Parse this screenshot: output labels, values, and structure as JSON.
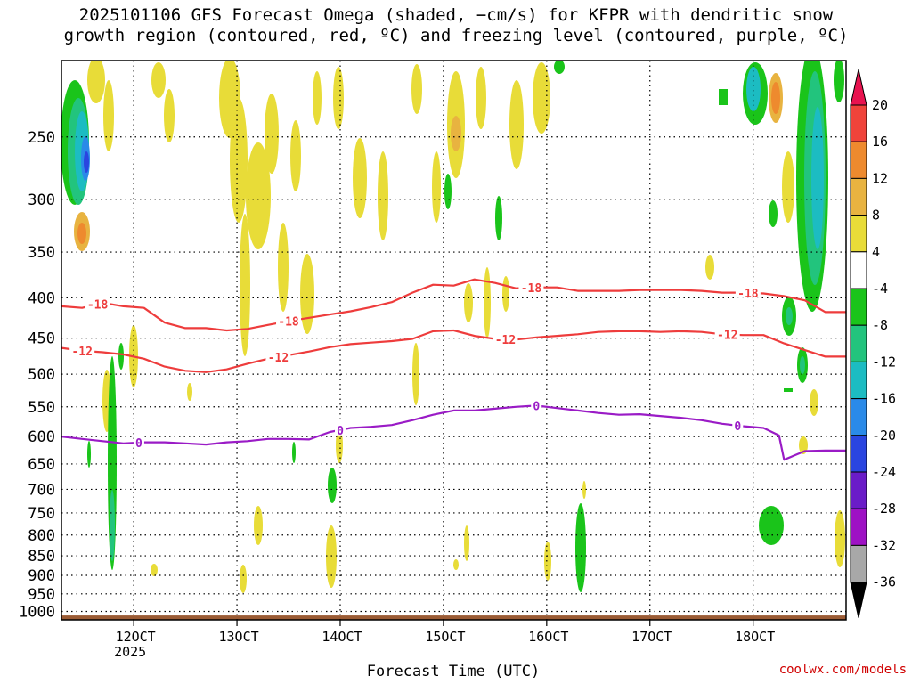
{
  "title": {
    "line1": "2025101106 GFS Forecast Omega (shaded, −cm/s) for KFPR with dendritic snow",
    "line2": "growth region (contoured, red, ºC) and freezing level (contoured, purple, ºC)"
  },
  "credit": "coolwx.com/models",
  "chart_data": {
    "type": "time-height cross section",
    "xlabel": "Forecast Time (UTC)",
    "ylabel": "",
    "x_range_hours": [
      -7,
      69
    ],
    "x_ticks": [
      {
        "hour": 0,
        "label": "12OCT",
        "sub": "2025"
      },
      {
        "hour": 10,
        "label": "13OCT",
        "sub": ""
      },
      {
        "hour": 20,
        "label": "14OCT",
        "sub": ""
      },
      {
        "hour": 30,
        "label": "15OCT",
        "sub": ""
      },
      {
        "hour": 40,
        "label": "16OCT",
        "sub": ""
      },
      {
        "hour": 50,
        "label": "17OCT",
        "sub": ""
      },
      {
        "hour": 60,
        "label": "18OCT",
        "sub": ""
      }
    ],
    "y_range_hpa": [
      1025,
      200
    ],
    "y_ticks": [
      250,
      300,
      350,
      400,
      450,
      500,
      550,
      600,
      650,
      700,
      750,
      800,
      850,
      900,
      950,
      1000
    ],
    "colorbar": {
      "labels": [
        "20",
        "16",
        "12",
        "8",
        "4",
        "-4",
        "-8",
        "-12",
        "-16",
        "-20",
        "-24",
        "-28",
        "-32",
        "-36"
      ],
      "colors": [
        "#e8134f",
        "#f0433a",
        "#ee8a2e",
        "#e8b340",
        "#e8dc38",
        "#ffffff",
        "#1ac41a",
        "#22c47d",
        "#1cbcc2",
        "#2a8ae8",
        "#2a45e0",
        "#6a1cc8",
        "#9e11c4",
        "#a8a8a8",
        "#000000"
      ]
    },
    "contours": [
      {
        "name": "-18",
        "color": "#ee3c3c",
        "points": [
          [
            -7,
            410
          ],
          [
            -5,
            412
          ],
          [
            -3,
            406
          ],
          [
            -1,
            410
          ],
          [
            1,
            412
          ],
          [
            3,
            430
          ],
          [
            5,
            437
          ],
          [
            7,
            437
          ],
          [
            9,
            440
          ],
          [
            11,
            438
          ],
          [
            13,
            433
          ],
          [
            15,
            428
          ],
          [
            17,
            424
          ],
          [
            19,
            420
          ],
          [
            21,
            416
          ],
          [
            23,
            411
          ],
          [
            25,
            405
          ],
          [
            27,
            394
          ],
          [
            29,
            385
          ],
          [
            31,
            386
          ],
          [
            33,
            379
          ],
          [
            35,
            383
          ],
          [
            37,
            389
          ],
          [
            39,
            388
          ],
          [
            41,
            388
          ],
          [
            43,
            392
          ],
          [
            45,
            392
          ],
          [
            47,
            392
          ],
          [
            49,
            391
          ],
          [
            51,
            391
          ],
          [
            53,
            391
          ],
          [
            55,
            392
          ],
          [
            57,
            394
          ],
          [
            59,
            394
          ],
          [
            61,
            395
          ],
          [
            63,
            398
          ],
          [
            65,
            403
          ],
          [
            67,
            417
          ],
          [
            69,
            417
          ]
        ],
        "labels": [
          {
            "hour": -3.5,
            "text": "-18"
          },
          {
            "hour": 15,
            "text": "-18"
          },
          {
            "hour": 38.5,
            "text": "-18"
          },
          {
            "hour": 59.5,
            "text": "-18"
          }
        ]
      },
      {
        "name": "-12",
        "color": "#ee3c3c",
        "points": [
          [
            -7,
            463
          ],
          [
            -5,
            467
          ],
          [
            -3,
            469
          ],
          [
            -1,
            472
          ],
          [
            1,
            478
          ],
          [
            3,
            489
          ],
          [
            5,
            495
          ],
          [
            7,
            497
          ],
          [
            9,
            493
          ],
          [
            11,
            485
          ],
          [
            13,
            478
          ],
          [
            15,
            473
          ],
          [
            17,
            468
          ],
          [
            19,
            462
          ],
          [
            21,
            458
          ],
          [
            23,
            456
          ],
          [
            25,
            454
          ],
          [
            27,
            451
          ],
          [
            29,
            441
          ],
          [
            31,
            440
          ],
          [
            33,
            447
          ],
          [
            35,
            451
          ],
          [
            37,
            452
          ],
          [
            39,
            449
          ],
          [
            41,
            447
          ],
          [
            43,
            445
          ],
          [
            45,
            442
          ],
          [
            47,
            441
          ],
          [
            49,
            441
          ],
          [
            51,
            442
          ],
          [
            53,
            441
          ],
          [
            55,
            442
          ],
          [
            57,
            445
          ],
          [
            59,
            446
          ],
          [
            61,
            446
          ],
          [
            63,
            457
          ],
          [
            65,
            466
          ],
          [
            67,
            475
          ],
          [
            69,
            475
          ]
        ],
        "labels": [
          {
            "hour": -5,
            "text": "-12"
          },
          {
            "hour": 14,
            "text": "-12"
          },
          {
            "hour": 36,
            "text": "-12"
          },
          {
            "hour": 57.5,
            "text": "-12"
          }
        ]
      },
      {
        "name": "0",
        "color": "#9a1bc6",
        "points": [
          [
            -7,
            600
          ],
          [
            -5,
            604
          ],
          [
            -3,
            608
          ],
          [
            -1,
            612
          ],
          [
            1,
            610
          ],
          [
            3,
            610
          ],
          [
            5,
            612
          ],
          [
            7,
            614
          ],
          [
            9,
            610
          ],
          [
            11,
            608
          ],
          [
            13,
            604
          ],
          [
            15,
            604
          ],
          [
            17,
            605
          ],
          [
            19,
            592
          ],
          [
            21,
            585
          ],
          [
            23,
            583
          ],
          [
            25,
            580
          ],
          [
            27,
            572
          ],
          [
            29,
            563
          ],
          [
            31,
            556
          ],
          [
            33,
            556
          ],
          [
            35,
            553
          ],
          [
            37,
            550
          ],
          [
            39,
            548
          ],
          [
            41,
            552
          ],
          [
            43,
            556
          ],
          [
            45,
            560
          ],
          [
            47,
            563
          ],
          [
            49,
            562
          ],
          [
            51,
            565
          ],
          [
            53,
            568
          ],
          [
            55,
            572
          ],
          [
            57,
            578
          ],
          [
            59,
            582
          ],
          [
            61,
            585
          ],
          [
            62.5,
            598
          ],
          [
            63,
            642
          ],
          [
            65,
            626
          ],
          [
            67,
            625
          ],
          [
            69,
            625
          ]
        ],
        "labels": [
          {
            "hour": 0.5,
            "text": "0"
          },
          {
            "hour": 20,
            "text": "0"
          },
          {
            "hour": 39,
            "text": "0"
          },
          {
            "hour": 58.5,
            "text": "0"
          }
        ]
      }
    ],
    "terrain_hpa": 1012,
    "terrain_color": "#9b5b34"
  }
}
